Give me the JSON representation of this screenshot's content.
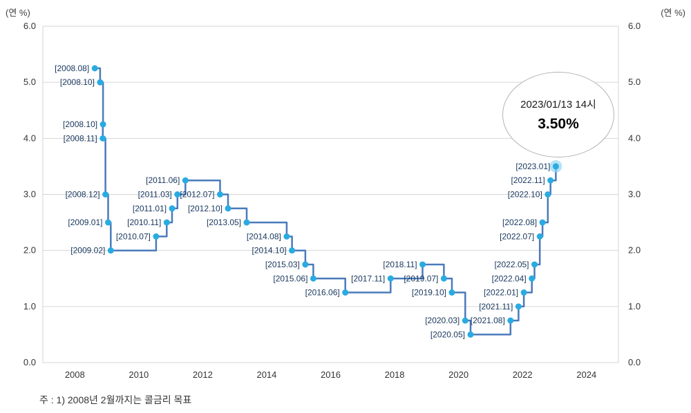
{
  "axis": {
    "unit_left": "(연 %)",
    "unit_right": "(연 %)",
    "y_ticks": [
      "0.0",
      "1.0",
      "2.0",
      "3.0",
      "4.0",
      "5.0",
      "6.0"
    ],
    "x_ticks": [
      "2008",
      "2010",
      "2012",
      "2014",
      "2016",
      "2018",
      "2020",
      "2022",
      "2024"
    ]
  },
  "callout": {
    "line1": "2023/01/13 14시",
    "line2": "3.50%"
  },
  "note": "주 : 1) 2008년 2월까지는 콜금리 목표",
  "colors": {
    "line": "#4a7aba",
    "point": "#29abe2",
    "halo": "#8ed4f5",
    "label": "#17365d",
    "grid": "#d6d6d6",
    "axis_text": "#333333"
  },
  "chart_data": {
    "type": "line",
    "subtype": "step",
    "x_range": [
      2007,
      2025
    ],
    "y_range": [
      0,
      6
    ],
    "grid": "horizontal",
    "legend": "none",
    "points": [
      {
        "label": "[2008.08]",
        "year": 2008,
        "month": 8,
        "value": 5.25
      },
      {
        "label": "[2008.10]",
        "year": 2008,
        "month": 10,
        "value": 5.0
      },
      {
        "label": "[2008.10]",
        "year": 2008,
        "month": 10,
        "value": 4.25
      },
      {
        "label": "[2008.11]",
        "year": 2008,
        "month": 11,
        "value": 4.0
      },
      {
        "label": "[2008.12]",
        "year": 2008,
        "month": 12,
        "value": 3.0
      },
      {
        "label": "[2009.01]",
        "year": 2009,
        "month": 1,
        "value": 2.5
      },
      {
        "label": "[2009.02]",
        "year": 2009,
        "month": 2,
        "value": 2.0
      },
      {
        "label": "[2010.07]",
        "year": 2010,
        "month": 7,
        "value": 2.25
      },
      {
        "label": "[2010.11]",
        "year": 2010,
        "month": 11,
        "value": 2.5
      },
      {
        "label": "[2011.01]",
        "year": 2011,
        "month": 1,
        "value": 2.75
      },
      {
        "label": "[2011.03]",
        "year": 2011,
        "month": 3,
        "value": 3.0
      },
      {
        "label": "[2011.06]",
        "year": 2011,
        "month": 6,
        "value": 3.25
      },
      {
        "label": "[2012.07]",
        "year": 2012,
        "month": 7,
        "value": 3.0
      },
      {
        "label": "[2012.10]",
        "year": 2012,
        "month": 10,
        "value": 2.75
      },
      {
        "label": "[2013.05]",
        "year": 2013,
        "month": 5,
        "value": 2.5
      },
      {
        "label": "[2014.08]",
        "year": 2014,
        "month": 8,
        "value": 2.25
      },
      {
        "label": "[2014.10]",
        "year": 2014,
        "month": 10,
        "value": 2.0
      },
      {
        "label": "[2015.03]",
        "year": 2015,
        "month": 3,
        "value": 1.75
      },
      {
        "label": "[2015.06]",
        "year": 2015,
        "month": 6,
        "value": 1.5
      },
      {
        "label": "[2016.06]",
        "year": 2016,
        "month": 6,
        "value": 1.25
      },
      {
        "label": "[2017.11]",
        "year": 2017,
        "month": 11,
        "value": 1.5
      },
      {
        "label": "[2018.11]",
        "year": 2018,
        "month": 11,
        "value": 1.75
      },
      {
        "label": "[2019.07]",
        "year": 2019,
        "month": 7,
        "value": 1.5
      },
      {
        "label": "[2019.10]",
        "year": 2019,
        "month": 10,
        "value": 1.25
      },
      {
        "label": "[2020.03]",
        "year": 2020,
        "month": 3,
        "value": 0.75
      },
      {
        "label": "[2020.05]",
        "year": 2020,
        "month": 5,
        "value": 0.5
      },
      {
        "label": "[2021.08]",
        "year": 2021,
        "month": 8,
        "value": 0.75
      },
      {
        "label": "[2021.11]",
        "year": 2021,
        "month": 11,
        "value": 1.0
      },
      {
        "label": "[2022.01]",
        "year": 2022,
        "month": 1,
        "value": 1.25
      },
      {
        "label": "[2022.04]",
        "year": 2022,
        "month": 4,
        "value": 1.5
      },
      {
        "label": "[2022.05]",
        "year": 2022,
        "month": 5,
        "value": 1.75
      },
      {
        "label": "[2022.07]",
        "year": 2022,
        "month": 7,
        "value": 2.25
      },
      {
        "label": "[2022.08]",
        "year": 2022,
        "month": 8,
        "value": 2.5
      },
      {
        "label": "[2022.10]",
        "year": 2022,
        "month": 10,
        "value": 3.0
      },
      {
        "label": "[2022.11]",
        "year": 2022,
        "month": 11,
        "value": 3.25
      },
      {
        "label": "[2023.01]",
        "year": 2023,
        "month": 1,
        "value": 3.5
      }
    ]
  }
}
